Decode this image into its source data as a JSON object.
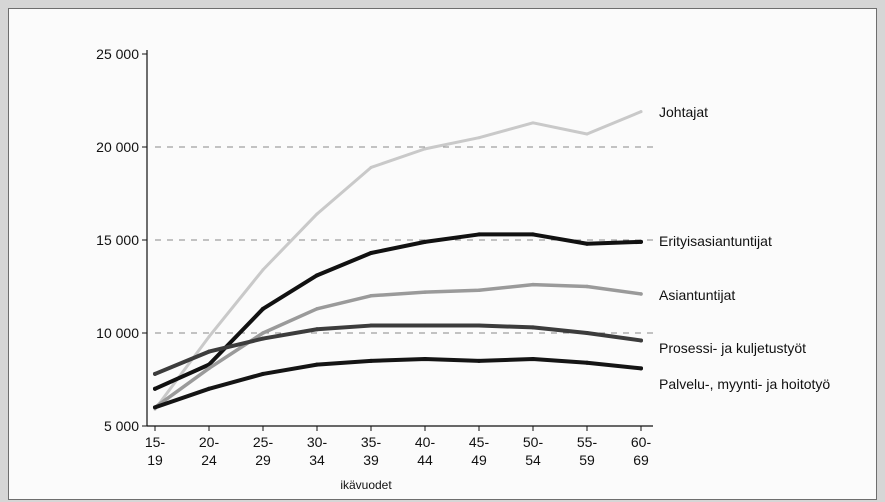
{
  "chart_data": {
    "type": "line",
    "title": "",
    "xlabel": "ikävuodet",
    "ylabel": "",
    "ylim": [
      5000,
      25000
    ],
    "y_ticks": [
      "25 000",
      "20 000",
      "15 000",
      "10 000",
      "5 000"
    ],
    "y_tick_values": [
      25000,
      20000,
      15000,
      10000,
      5000
    ],
    "gridlines": [
      20000,
      15000,
      10000
    ],
    "categories": [
      [
        "15-",
        "19"
      ],
      [
        "20-",
        "24"
      ],
      [
        "25-",
        "29"
      ],
      [
        "30-",
        "34"
      ],
      [
        "35-",
        "39"
      ],
      [
        "40-",
        "44"
      ],
      [
        "45-",
        "49"
      ],
      [
        "50-",
        "54"
      ],
      [
        "55-",
        "59"
      ],
      [
        "60-",
        "69"
      ]
    ],
    "series": [
      {
        "name": "Johtajat",
        "color": "#c9c9c9",
        "width": 3,
        "values": [
          5900,
          9800,
          13400,
          16400,
          18900,
          19900,
          20500,
          21300,
          20700,
          21900
        ]
      },
      {
        "name": "Erityisasiantuntijat",
        "color": "#111111",
        "width": 4,
        "values": [
          7000,
          8300,
          11300,
          13100,
          14300,
          14900,
          15300,
          15300,
          14800,
          14900
        ]
      },
      {
        "name": "Asiantuntijat",
        "color": "#9a9a9a",
        "width": 3.5,
        "values": [
          6000,
          8100,
          10000,
          11300,
          12000,
          12200,
          12300,
          12600,
          12500,
          12100
        ]
      },
      {
        "name": "Prosessi- ja kuljetustyöt",
        "color": "#3c3c3c",
        "width": 4,
        "values": [
          7800,
          9000,
          9700,
          10200,
          10400,
          10400,
          10400,
          10300,
          10000,
          9600
        ]
      },
      {
        "name": "Palvelu-, myynti- ja hoitotyö",
        "color": "#141414",
        "width": 4,
        "values": [
          6000,
          7000,
          7800,
          8300,
          8500,
          8600,
          8500,
          8600,
          8400,
          8100
        ]
      }
    ]
  }
}
